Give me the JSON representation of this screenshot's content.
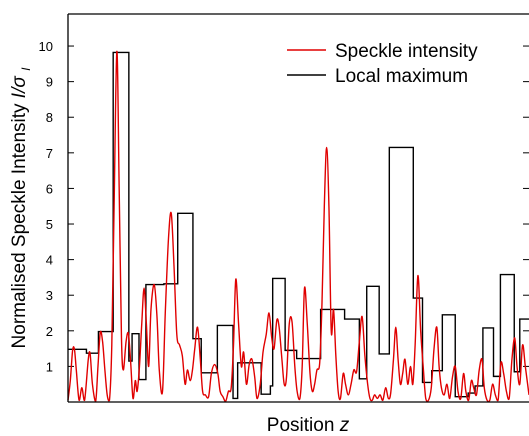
{
  "chart_data": {
    "type": "line",
    "xlabel": "Position",
    "xlabel_var": "z",
    "ylabel": "Normalised Speckle Intensity",
    "ylabel_var": "I/σ",
    "ylabel_sub": "I",
    "ylim": [
      0,
      10.9
    ],
    "yticks": [
      1,
      2,
      3,
      4,
      5,
      6,
      7,
      8,
      9,
      10
    ],
    "legend_position": "top-right",
    "xlim": [
      0,
      1
    ],
    "series": [
      {
        "name": "Speckle intensity",
        "color": "#e00000",
        "points": [
          [
            0.0,
            0.05
          ],
          [
            0.005,
            0.6
          ],
          [
            0.01,
            1.45
          ],
          [
            0.014,
            1.48
          ],
          [
            0.018,
            0.9
          ],
          [
            0.024,
            0.05
          ],
          [
            0.03,
            0.4
          ],
          [
            0.036,
            0.05
          ],
          [
            0.044,
            1.2
          ],
          [
            0.048,
            1.35
          ],
          [
            0.053,
            0.5
          ],
          [
            0.06,
            0.02
          ],
          [
            0.065,
            1.0
          ],
          [
            0.07,
            1.95
          ],
          [
            0.075,
            1.7
          ],
          [
            0.08,
            0.9
          ],
          [
            0.085,
            0.2
          ],
          [
            0.09,
            0.05
          ],
          [
            0.095,
            1.6
          ],
          [
            0.1,
            5.5
          ],
          [
            0.106,
            9.85
          ],
          [
            0.111,
            6.0
          ],
          [
            0.116,
            1.8
          ],
          [
            0.12,
            0.9
          ],
          [
            0.126,
            1.7
          ],
          [
            0.131,
            1.92
          ],
          [
            0.136,
            1.1
          ],
          [
            0.141,
            0.1
          ],
          [
            0.146,
            0.6
          ],
          [
            0.15,
            0.3
          ],
          [
            0.155,
            1.0
          ],
          [
            0.16,
            2.2
          ],
          [
            0.165,
            3.2
          ],
          [
            0.17,
            2.2
          ],
          [
            0.175,
            1.0
          ],
          [
            0.18,
            2.6
          ],
          [
            0.187,
            3.3
          ],
          [
            0.193,
            2.4
          ],
          [
            0.198,
            0.9
          ],
          [
            0.205,
            0.3
          ],
          [
            0.211,
            2.5
          ],
          [
            0.218,
            4.6
          ],
          [
            0.224,
            5.3
          ],
          [
            0.23,
            3.8
          ],
          [
            0.236,
            1.9
          ],
          [
            0.242,
            1.6
          ],
          [
            0.248,
            1.3
          ],
          [
            0.254,
            0.5
          ],
          [
            0.259,
            0.9
          ],
          [
            0.265,
            0.6
          ],
          [
            0.27,
            0.9
          ],
          [
            0.275,
            1.5
          ],
          [
            0.281,
            2.1
          ],
          [
            0.287,
            1.2
          ],
          [
            0.292,
            0.3
          ],
          [
            0.298,
            0.2
          ],
          [
            0.305,
            0.15
          ],
          [
            0.311,
            0.8
          ],
          [
            0.318,
            1.05
          ],
          [
            0.325,
            0.8
          ],
          [
            0.33,
            0.3
          ],
          [
            0.336,
            0.15
          ],
          [
            0.342,
            0.02
          ],
          [
            0.348,
            0.3
          ],
          [
            0.354,
            0.4
          ],
          [
            0.359,
            1.6
          ],
          [
            0.364,
            3.45
          ],
          [
            0.37,
            2.2
          ],
          [
            0.376,
            1.0
          ],
          [
            0.381,
            1.4
          ],
          [
            0.387,
            0.5
          ],
          [
            0.393,
            1.05
          ],
          [
            0.399,
            1.2
          ],
          [
            0.405,
            0.7
          ],
          [
            0.41,
            0.1
          ],
          [
            0.417,
            0.5
          ],
          [
            0.423,
            1.4
          ],
          [
            0.43,
            1.9
          ],
          [
            0.436,
            2.5
          ],
          [
            0.442,
            1.8
          ],
          [
            0.447,
            1.5
          ],
          [
            0.453,
            2.3
          ],
          [
            0.458,
            2.1
          ],
          [
            0.464,
            1.2
          ],
          [
            0.469,
            0.5
          ],
          [
            0.474,
            0.7
          ],
          [
            0.48,
            2.2
          ],
          [
            0.486,
            2.25
          ],
          [
            0.492,
            1.0
          ],
          [
            0.497,
            0.3
          ],
          [
            0.503,
            0.1
          ],
          [
            0.508,
            1.0
          ],
          [
            0.513,
            3.2
          ],
          [
            0.519,
            2.2
          ],
          [
            0.525,
            0.8
          ],
          [
            0.53,
            0.3
          ],
          [
            0.535,
            0.5
          ],
          [
            0.54,
            0.9
          ],
          [
            0.546,
            1.1
          ],
          [
            0.551,
            2.8
          ],
          [
            0.556,
            5.5
          ],
          [
            0.561,
            7.15
          ],
          [
            0.566,
            5.5
          ],
          [
            0.571,
            2.0
          ],
          [
            0.576,
            2.6
          ],
          [
            0.581,
            1.3
          ],
          [
            0.586,
            0.3
          ],
          [
            0.591,
            0.1
          ],
          [
            0.597,
            0.8
          ],
          [
            0.602,
            0.5
          ],
          [
            0.608,
            0.2
          ],
          [
            0.614,
            0.5
          ],
          [
            0.62,
            0.9
          ],
          [
            0.626,
            0.85
          ],
          [
            0.632,
            1.7
          ],
          [
            0.638,
            2.4
          ],
          [
            0.644,
            1.3
          ],
          [
            0.65,
            0.5
          ],
          [
            0.655,
            0.1
          ],
          [
            0.66,
            0.05
          ],
          [
            0.665,
            0.2
          ],
          [
            0.671,
            0.1
          ],
          [
            0.677,
            0.2
          ],
          [
            0.683,
            0.05
          ],
          [
            0.689,
            0.4
          ],
          [
            0.695,
            0.1
          ],
          [
            0.7,
            0.25
          ],
          [
            0.706,
            1.2
          ],
          [
            0.711,
            2.1
          ],
          [
            0.716,
            1.2
          ],
          [
            0.721,
            0.5
          ],
          [
            0.726,
            0.8
          ],
          [
            0.731,
            1.2
          ],
          [
            0.737,
            0.5
          ],
          [
            0.743,
            1.0
          ],
          [
            0.748,
            0.5
          ],
          [
            0.753,
            1.6
          ],
          [
            0.759,
            3.55
          ],
          [
            0.765,
            2.0
          ],
          [
            0.771,
            0.9
          ],
          [
            0.776,
            0.1
          ],
          [
            0.782,
            0.05
          ],
          [
            0.788,
            0.4
          ],
          [
            0.794,
            1.5
          ],
          [
            0.8,
            2.1
          ],
          [
            0.805,
            1.0
          ],
          [
            0.81,
            0.4
          ],
          [
            0.816,
            0.2
          ],
          [
            0.822,
            0.5
          ],
          [
            0.828,
            0.1
          ],
          [
            0.834,
            0.7
          ],
          [
            0.84,
            1.0
          ],
          [
            0.846,
            0.3
          ],
          [
            0.852,
            0.1
          ],
          [
            0.858,
            0.8
          ],
          [
            0.863,
            0.3
          ],
          [
            0.869,
            0.05
          ],
          [
            0.875,
            0.6
          ],
          [
            0.88,
            0.4
          ],
          [
            0.886,
            0.2
          ],
          [
            0.892,
            0.9
          ],
          [
            0.898,
            1.2
          ],
          [
            0.903,
            0.4
          ],
          [
            0.909,
            0.05
          ],
          [
            0.915,
            0.05
          ],
          [
            0.921,
            0.5
          ],
          [
            0.927,
            0.2
          ],
          [
            0.933,
            0.05
          ],
          [
            0.939,
            1.1
          ],
          [
            0.945,
            0.8
          ],
          [
            0.951,
            0.3
          ],
          [
            0.957,
            0.1
          ],
          [
            0.963,
            1.2
          ],
          [
            0.969,
            1.8
          ],
          [
            0.974,
            1.0
          ],
          [
            0.98,
            0.5
          ],
          [
            0.986,
            1.6
          ],
          [
            0.992,
            1.0
          ],
          [
            1.0,
            0.2
          ]
        ]
      },
      {
        "name": "Local maximum",
        "color": "#000000",
        "steps": [
          [
            0.0,
            1.48
          ],
          [
            0.04,
            1.37
          ],
          [
            0.066,
            1.98
          ],
          [
            0.098,
            9.82
          ],
          [
            0.132,
            1.15
          ],
          [
            0.139,
            1.92
          ],
          [
            0.154,
            0.63
          ],
          [
            0.169,
            3.3
          ],
          [
            0.208,
            3.32
          ],
          [
            0.238,
            5.3
          ],
          [
            0.271,
            1.78
          ],
          [
            0.289,
            0.82
          ],
          [
            0.324,
            2.15
          ],
          [
            0.358,
            0.1
          ],
          [
            0.368,
            1.1
          ],
          [
            0.419,
            0.22
          ],
          [
            0.439,
            0.45
          ],
          [
            0.444,
            3.47
          ],
          [
            0.471,
            1.45
          ],
          [
            0.496,
            1.22
          ],
          [
            0.548,
            2.6
          ],
          [
            0.6,
            2.33
          ],
          [
            0.632,
            0.65
          ],
          [
            0.648,
            3.25
          ],
          [
            0.675,
            1.35
          ],
          [
            0.697,
            7.15
          ],
          [
            0.749,
            2.92
          ],
          [
            0.769,
            0.55
          ],
          [
            0.789,
            0.88
          ],
          [
            0.812,
            2.45
          ],
          [
            0.84,
            0.15
          ],
          [
            0.868,
            0.25
          ],
          [
            0.883,
            0.45
          ],
          [
            0.9,
            2.08
          ],
          [
            0.923,
            0.72
          ],
          [
            0.938,
            3.58
          ],
          [
            0.968,
            0.85
          ],
          [
            0.98,
            2.33
          ],
          [
            1.0,
            2.33
          ]
        ]
      }
    ]
  }
}
